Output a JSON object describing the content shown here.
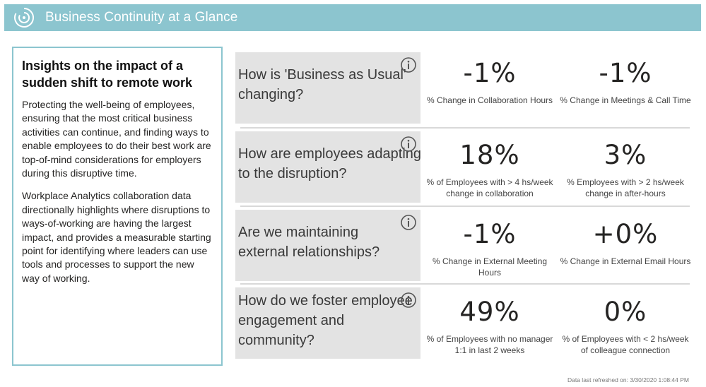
{
  "header": {
    "title": "Business Continuity at a Glance",
    "logo_icon": "power-bi-logo-icon",
    "color": "#8cc5cf"
  },
  "insights": {
    "title": "Insights on the impact of a sudden shift to remote work",
    "paragraphs": [
      "Protecting the well-being of employees, ensuring that the most critical business activities can continue, and finding ways to enable employees to do their best work are top-of-mind considerations for employers during this disruptive time.",
      "Workplace Analytics collaboration data directionally highlights where disruptions to ways-of-working are having the largest impact, and provides a measurable starting point for identifying where leaders can use tools and processes to support the new way of working."
    ]
  },
  "sections": [
    {
      "question": "How is 'Business as Usual' changing?",
      "metrics": [
        {
          "value": "-1%",
          "label": "% Change in Collaboration Hours"
        },
        {
          "value": "-1%",
          "label": "% Change in Meetings & Call Time"
        }
      ]
    },
    {
      "question": "How are employees adapting to the disruption?",
      "metrics": [
        {
          "value": "18%",
          "label": "% of Employees with >  4 hs/week change in collaboration"
        },
        {
          "value": "3%",
          "label": "% Employees with > 2 hs/week change in after-hours"
        }
      ]
    },
    {
      "question": "Are we maintaining external relationships?",
      "metrics": [
        {
          "value": "-1%",
          "label": "% Change in External Meeting Hours"
        },
        {
          "value": "+0%",
          "label": "% Change in External Email Hours"
        }
      ]
    },
    {
      "question": "How do we foster employee engagement and community?",
      "metrics": [
        {
          "value": "49%",
          "label": "% of Employees with no manager 1:1 in last 2 weeks"
        },
        {
          "value": "0%",
          "label": "% of Employees with <  2 hs/week of colleague connection"
        }
      ]
    }
  ],
  "footer": {
    "refreshed": "Data last refreshed on: 3/30/2020 1:08:44 PM"
  }
}
